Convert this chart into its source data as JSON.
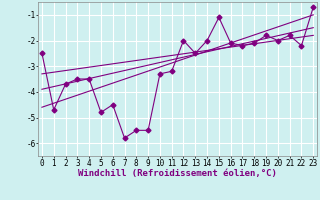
{
  "xlabel": "Windchill (Refroidissement éolien,°C)",
  "bg_color": "#cff0f0",
  "grid_color": "#ffffff",
  "line_color": "#800080",
  "scatter_color": "#800080",
  "data_points": [
    [
      0,
      -2.5
    ],
    [
      1,
      -4.7
    ],
    [
      2,
      -3.7
    ],
    [
      3,
      -3.5
    ],
    [
      4,
      -3.5
    ],
    [
      5,
      -4.8
    ],
    [
      6,
      -4.5
    ],
    [
      7,
      -5.8
    ],
    [
      8,
      -5.5
    ],
    [
      9,
      -5.5
    ],
    [
      10,
      -3.3
    ],
    [
      11,
      -3.2
    ],
    [
      12,
      -2.0
    ],
    [
      13,
      -2.5
    ],
    [
      14,
      -2.0
    ],
    [
      15,
      -1.1
    ],
    [
      16,
      -2.1
    ],
    [
      17,
      -2.2
    ],
    [
      18,
      -2.1
    ],
    [
      19,
      -1.8
    ],
    [
      20,
      -2.0
    ],
    [
      21,
      -1.8
    ],
    [
      22,
      -2.2
    ],
    [
      23,
      -0.7
    ]
  ],
  "reg_lines": [
    {
      "x0": 0,
      "y0": -4.6,
      "x1": 23,
      "y1": -1.0
    },
    {
      "x0": 0,
      "y0": -3.9,
      "x1": 23,
      "y1": -1.5
    },
    {
      "x0": 0,
      "y0": -3.3,
      "x1": 23,
      "y1": -1.8
    }
  ],
  "xlim": [
    0,
    23
  ],
  "ylim": [
    -6.5,
    -0.5
  ],
  "yticks": [
    -6,
    -5,
    -4,
    -3,
    -2,
    -1
  ],
  "xticks": [
    0,
    1,
    2,
    3,
    4,
    5,
    6,
    7,
    8,
    9,
    10,
    11,
    12,
    13,
    14,
    15,
    16,
    17,
    18,
    19,
    20,
    21,
    22,
    23
  ],
  "tick_fontsize": 5.5,
  "xlabel_fontsize": 6.5,
  "marker": "D",
  "markersize": 2.5,
  "linewidth": 0.8,
  "reg_linewidth": 0.8
}
